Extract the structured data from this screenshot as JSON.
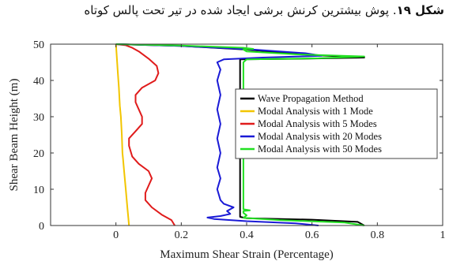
{
  "caption": {
    "label": "شکل ۱۹",
    "text": ". پوش بیشترین کرنش برشی ایجاد شده در تیر تحت پالس کوتاه"
  },
  "chart_data": {
    "type": "line",
    "title": "",
    "xlabel": "Maximum Shear Strain (Percentage)",
    "ylabel": "Shear Beam Height (m)",
    "xlim": [
      -0.2,
      1.0
    ],
    "ylim": [
      0,
      50
    ],
    "xticks": [
      0,
      0.2,
      0.4,
      0.6,
      0.8,
      1
    ],
    "xtick_labels": [
      "0",
      "0.2",
      "0.4",
      "0.6",
      "0.8",
      "1"
    ],
    "yticks": [
      0,
      10,
      20,
      30,
      40,
      50
    ],
    "ytick_labels": [
      "0",
      "10",
      "20",
      "30",
      "40",
      "50"
    ],
    "grid": false,
    "legend_position": "right",
    "series": [
      {
        "name": "Wave Propagation Method",
        "color": "#000000",
        "points": [
          [
            0.76,
            0
          ],
          [
            0.74,
            1.0
          ],
          [
            0.6,
            1.6
          ],
          [
            0.4,
            2.0
          ],
          [
            0.38,
            2.4
          ],
          [
            0.38,
            44
          ],
          [
            0.38,
            45.8
          ],
          [
            0.58,
            46.0
          ],
          [
            0.76,
            46.3
          ],
          [
            0.6,
            47.0
          ],
          [
            0.4,
            48.5
          ],
          [
            0.2,
            49.5
          ],
          [
            0.0,
            50
          ]
        ]
      },
      {
        "name": "Modal Analysis with 1 Mode",
        "color": "#f2c500",
        "points": [
          [
            0.04,
            0
          ],
          [
            0.038,
            2
          ],
          [
            0.035,
            5
          ],
          [
            0.032,
            8
          ],
          [
            0.03,
            10
          ],
          [
            0.025,
            15
          ],
          [
            0.022,
            18
          ],
          [
            0.02,
            20
          ],
          [
            0.018,
            25
          ],
          [
            0.015,
            30
          ],
          [
            0.012,
            33
          ],
          [
            0.009,
            38
          ],
          [
            0.006,
            42
          ],
          [
            0.003,
            46
          ],
          [
            0.0,
            50
          ]
        ]
      },
      {
        "name": "Modal Analysis with 5 Modes",
        "color": "#e01b1b",
        "points": [
          [
            0.18,
            0
          ],
          [
            0.17,
            1.5
          ],
          [
            0.14,
            3
          ],
          [
            0.11,
            5
          ],
          [
            0.09,
            7
          ],
          [
            0.09,
            9
          ],
          [
            0.1,
            11
          ],
          [
            0.11,
            13
          ],
          [
            0.1,
            15
          ],
          [
            0.07,
            17
          ],
          [
            0.05,
            19
          ],
          [
            0.04,
            22
          ],
          [
            0.04,
            24
          ],
          [
            0.06,
            26
          ],
          [
            0.08,
            28
          ],
          [
            0.08,
            30
          ],
          [
            0.07,
            32
          ],
          [
            0.06,
            34
          ],
          [
            0.06,
            36
          ],
          [
            0.08,
            38
          ],
          [
            0.12,
            40
          ],
          [
            0.13,
            42
          ],
          [
            0.125,
            44
          ],
          [
            0.1,
            46
          ],
          [
            0.07,
            48
          ],
          [
            0.05,
            49
          ],
          [
            0.03,
            49.7
          ],
          [
            0.0,
            50
          ]
        ]
      },
      {
        "name": "Modal Analysis with 20 Modes",
        "color": "#1a1ad6",
        "points": [
          [
            0.62,
            0
          ],
          [
            0.55,
            0.6
          ],
          [
            0.4,
            1.2
          ],
          [
            0.3,
            1.8
          ],
          [
            0.28,
            2.2
          ],
          [
            0.32,
            2.6
          ],
          [
            0.35,
            3.2
          ],
          [
            0.34,
            4
          ],
          [
            0.36,
            5
          ],
          [
            0.33,
            6
          ],
          [
            0.32,
            7
          ],
          [
            0.31,
            10
          ],
          [
            0.32,
            13
          ],
          [
            0.31,
            16
          ],
          [
            0.32,
            20
          ],
          [
            0.31,
            24
          ],
          [
            0.32,
            28
          ],
          [
            0.31,
            32
          ],
          [
            0.32,
            36
          ],
          [
            0.31,
            40
          ],
          [
            0.32,
            43
          ],
          [
            0.31,
            45
          ],
          [
            0.33,
            45.8
          ],
          [
            0.45,
            46.3
          ],
          [
            0.63,
            46.8
          ],
          [
            0.58,
            47.5
          ],
          [
            0.42,
            48.5
          ],
          [
            0.2,
            49.5
          ],
          [
            0.0,
            50
          ]
        ]
      },
      {
        "name": "Modal Analysis with 50 Modes",
        "color": "#22e022",
        "points": [
          [
            0.76,
            0
          ],
          [
            0.7,
            0.8
          ],
          [
            0.5,
            1.5
          ],
          [
            0.39,
            2.1
          ],
          [
            0.4,
            2.8
          ],
          [
            0.39,
            3.5
          ],
          [
            0.39,
            4.0
          ],
          [
            0.41,
            4.2
          ],
          [
            0.39,
            4.5
          ],
          [
            0.39,
            45
          ],
          [
            0.4,
            45.8
          ],
          [
            0.62,
            46.1
          ],
          [
            0.76,
            46.6
          ],
          [
            0.55,
            47.2
          ],
          [
            0.4,
            48
          ],
          [
            0.39,
            48.5
          ],
          [
            0.42,
            48.7
          ],
          [
            0.39,
            49
          ],
          [
            0.2,
            49.6
          ],
          [
            0.0,
            50
          ]
        ]
      }
    ]
  }
}
